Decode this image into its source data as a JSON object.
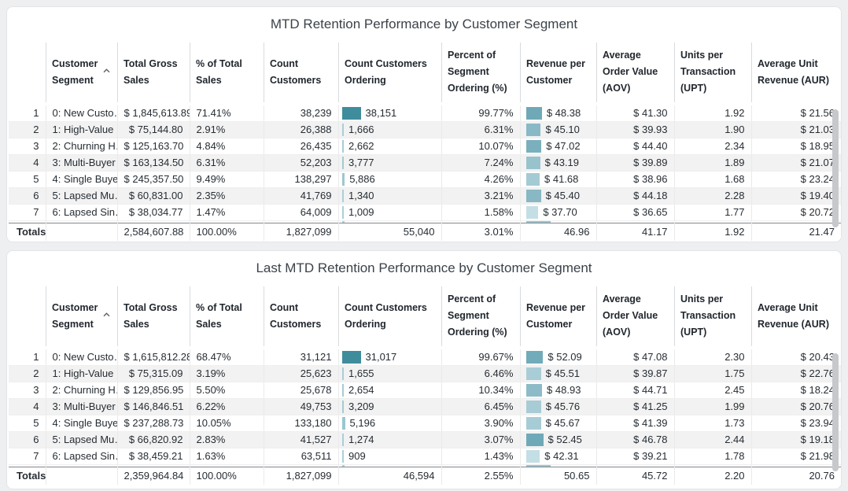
{
  "columns": [
    "Customer Segment",
    "Total Gross Sales",
    "% of Total Sales",
    "Count Customers",
    "Count Customers Ordering",
    "Percent of Segment Ordering (%)",
    "Revenue per Customer",
    "Average Order Value (AOV)",
    "Units per Transaction (UPT)",
    "Average Unit Revenue (AUR)"
  ],
  "sort": {
    "column": "Customer Segment",
    "direction": "ascending",
    "icon": "chevron-up-icon"
  },
  "colors": {
    "count_bar_min": "#aed2da",
    "count_bar_max": "#3f8d9c",
    "revenue_bar_min": "#c4dee5",
    "revenue_bar_max": "#6fa9b7",
    "sliver_count": "#aed2da",
    "sliver_revenue": "#9cc6d0"
  },
  "tables": [
    {
      "title": "MTD Retention Performance by Customer Segment",
      "rows": [
        {
          "num": "1",
          "segment": "0: New Custo…",
          "total_gross_sales": "$ 1,845,613.89",
          "pct_total_sales": "71.41%",
          "count_customers": "38,239",
          "count_ordering": {
            "value": 38151,
            "label": "38,151"
          },
          "pct_segment_ordering": "99.77%",
          "revenue_per_customer": {
            "value": 48.38,
            "label": "$ 48.38"
          },
          "aov": "$ 41.30",
          "upt": "1.92",
          "aur": "$ 21.56"
        },
        {
          "num": "2",
          "segment": "1: High-Value …",
          "total_gross_sales": "$ 75,144.80",
          "pct_total_sales": "2.91%",
          "count_customers": "26,388",
          "count_ordering": {
            "value": 1666,
            "label": "1,666"
          },
          "pct_segment_ordering": "6.31%",
          "revenue_per_customer": {
            "value": 45.1,
            "label": "$ 45.10"
          },
          "aov": "$ 39.93",
          "upt": "1.90",
          "aur": "$ 21.03"
        },
        {
          "num": "3",
          "segment": "2: Churning H…",
          "total_gross_sales": "$ 125,163.70",
          "pct_total_sales": "4.84%",
          "count_customers": "26,435",
          "count_ordering": {
            "value": 2662,
            "label": "2,662"
          },
          "pct_segment_ordering": "10.07%",
          "revenue_per_customer": {
            "value": 47.02,
            "label": "$ 47.02"
          },
          "aov": "$ 44.40",
          "upt": "2.34",
          "aur": "$ 18.95"
        },
        {
          "num": "4",
          "segment": "3: Multi-Buyer",
          "total_gross_sales": "$ 163,134.50",
          "pct_total_sales": "6.31%",
          "count_customers": "52,203",
          "count_ordering": {
            "value": 3777,
            "label": "3,777"
          },
          "pct_segment_ordering": "7.24%",
          "revenue_per_customer": {
            "value": 43.19,
            "label": "$ 43.19"
          },
          "aov": "$ 39.89",
          "upt": "1.89",
          "aur": "$ 21.07"
        },
        {
          "num": "5",
          "segment": "4: Single Buyer",
          "total_gross_sales": "$ 245,357.50",
          "pct_total_sales": "9.49%",
          "count_customers": "138,297",
          "count_ordering": {
            "value": 5886,
            "label": "5,886"
          },
          "pct_segment_ordering": "4.26%",
          "revenue_per_customer": {
            "value": 41.68,
            "label": "$ 41.68"
          },
          "aov": "$ 38.96",
          "upt": "1.68",
          "aur": "$ 23.24"
        },
        {
          "num": "6",
          "segment": "5: Lapsed Mu…",
          "total_gross_sales": "$ 60,831.00",
          "pct_total_sales": "2.35%",
          "count_customers": "41,769",
          "count_ordering": {
            "value": 1340,
            "label": "1,340"
          },
          "pct_segment_ordering": "3.21%",
          "revenue_per_customer": {
            "value": 45.4,
            "label": "$ 45.40"
          },
          "aov": "$ 44.18",
          "upt": "2.28",
          "aur": "$ 19.40"
        },
        {
          "num": "7",
          "segment": "6: Lapsed Sin…",
          "total_gross_sales": "$ 38,034.77",
          "pct_total_sales": "1.47%",
          "count_customers": "64,009",
          "count_ordering": {
            "value": 1009,
            "label": "1,009"
          },
          "pct_segment_ordering": "1.58%",
          "revenue_per_customer": {
            "value": 37.7,
            "label": "$ 37.70"
          },
          "aov": "$ 36.65",
          "upt": "1.77",
          "aur": "$ 20.72"
        }
      ],
      "totals": {
        "num": "Totals",
        "segment": "",
        "total_gross_sales": "2,584,607.88",
        "pct_total_sales": "100.00%",
        "count_customers": "1,827,099",
        "count_ordering": "55,040",
        "pct_segment_ordering": "3.01%",
        "revenue_per_customer": "46.96",
        "aov": "41.17",
        "upt": "1.92",
        "aur": "21.47"
      }
    },
    {
      "title": "Last MTD Retention Performance by Customer Segment",
      "rows": [
        {
          "num": "1",
          "segment": "0: New Custo…",
          "total_gross_sales": "$ 1,615,812.28",
          "pct_total_sales": "68.47%",
          "count_customers": "31,121",
          "count_ordering": {
            "value": 31017,
            "label": "31,017"
          },
          "pct_segment_ordering": "99.67%",
          "revenue_per_customer": {
            "value": 52.09,
            "label": "$ 52.09"
          },
          "aov": "$ 47.08",
          "upt": "2.30",
          "aur": "$ 20.43"
        },
        {
          "num": "2",
          "segment": "1: High-Value …",
          "total_gross_sales": "$ 75,315.09",
          "pct_total_sales": "3.19%",
          "count_customers": "25,623",
          "count_ordering": {
            "value": 1655,
            "label": "1,655"
          },
          "pct_segment_ordering": "6.46%",
          "revenue_per_customer": {
            "value": 45.51,
            "label": "$ 45.51"
          },
          "aov": "$ 39.87",
          "upt": "1.75",
          "aur": "$ 22.76"
        },
        {
          "num": "3",
          "segment": "2: Churning H…",
          "total_gross_sales": "$ 129,856.95",
          "pct_total_sales": "5.50%",
          "count_customers": "25,678",
          "count_ordering": {
            "value": 2654,
            "label": "2,654"
          },
          "pct_segment_ordering": "10.34%",
          "revenue_per_customer": {
            "value": 48.93,
            "label": "$ 48.93"
          },
          "aov": "$ 44.71",
          "upt": "2.45",
          "aur": "$ 18.24"
        },
        {
          "num": "4",
          "segment": "3: Multi-Buyer",
          "total_gross_sales": "$ 146,846.51",
          "pct_total_sales": "6.22%",
          "count_customers": "49,753",
          "count_ordering": {
            "value": 3209,
            "label": "3,209"
          },
          "pct_segment_ordering": "6.45%",
          "revenue_per_customer": {
            "value": 45.76,
            "label": "$ 45.76"
          },
          "aov": "$ 41.25",
          "upt": "1.99",
          "aur": "$ 20.76"
        },
        {
          "num": "5",
          "segment": "4: Single Buyer",
          "total_gross_sales": "$ 237,288.73",
          "pct_total_sales": "10.05%",
          "count_customers": "133,180",
          "count_ordering": {
            "value": 5196,
            "label": "5,196"
          },
          "pct_segment_ordering": "3.90%",
          "revenue_per_customer": {
            "value": 45.67,
            "label": "$ 45.67"
          },
          "aov": "$ 41.39",
          "upt": "1.73",
          "aur": "$ 23.94"
        },
        {
          "num": "6",
          "segment": "5: Lapsed Mu…",
          "total_gross_sales": "$ 66,820.92",
          "pct_total_sales": "2.83%",
          "count_customers": "41,527",
          "count_ordering": {
            "value": 1274,
            "label": "1,274"
          },
          "pct_segment_ordering": "3.07%",
          "revenue_per_customer": {
            "value": 52.45,
            "label": "$ 52.45"
          },
          "aov": "$ 46.78",
          "upt": "2.44",
          "aur": "$ 19.18"
        },
        {
          "num": "7",
          "segment": "6: Lapsed Sin…",
          "total_gross_sales": "$ 38,459.21",
          "pct_total_sales": "1.63%",
          "count_customers": "63,511",
          "count_ordering": {
            "value": 909,
            "label": "909"
          },
          "pct_segment_ordering": "1.43%",
          "revenue_per_customer": {
            "value": 42.31,
            "label": "$ 42.31"
          },
          "aov": "$ 39.21",
          "upt": "1.78",
          "aur": "$ 21.98"
        }
      ],
      "totals": {
        "num": "Totals",
        "segment": "",
        "total_gross_sales": "2,359,964.84",
        "pct_total_sales": "100.00%",
        "count_customers": "1,827,099",
        "count_ordering": "46,594",
        "pct_segment_ordering": "2.55%",
        "revenue_per_customer": "50.65",
        "aov": "45.72",
        "upt": "2.20",
        "aur": "20.76"
      }
    }
  ]
}
